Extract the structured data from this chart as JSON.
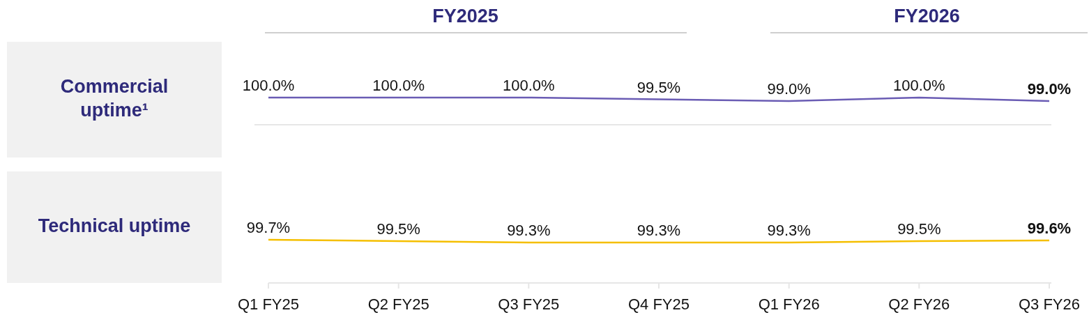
{
  "chart_data": [
    {
      "type": "line",
      "ylabel": "Commercial uptime¹",
      "annotations": [
        "FY2025",
        "FY2026"
      ],
      "series": [
        {
          "color": "#6a5cb4",
          "values": [
            100.0,
            100.0,
            100.0,
            99.5,
            99.0,
            100.0,
            99.0
          ],
          "value_labels": [
            "100.0%",
            "100.0%",
            "100.0%",
            "99.5%",
            "99.0%",
            "100.0%",
            "99.0%"
          ]
        }
      ],
      "tick_labels": false,
      "marker": "none"
    },
    {
      "type": "line",
      "ylabel": "Technical uptime",
      "categories": [
        "Q1 FY25",
        "Q2 FY25",
        "Q3 FY25",
        "Q4 FY25",
        "Q1 FY26",
        "Q2 FY26",
        "Q3 FY26"
      ],
      "series": [
        {
          "color": "#f5bf00",
          "values": [
            99.7,
            99.5,
            99.3,
            99.3,
            99.3,
            99.5,
            99.6
          ],
          "value_labels": [
            "99.7%",
            "99.5%",
            "99.3%",
            "99.3%",
            "99.3%",
            "99.5%",
            "99.6%"
          ]
        }
      ],
      "tick_labels": "x",
      "marker": "none"
    }
  ]
}
